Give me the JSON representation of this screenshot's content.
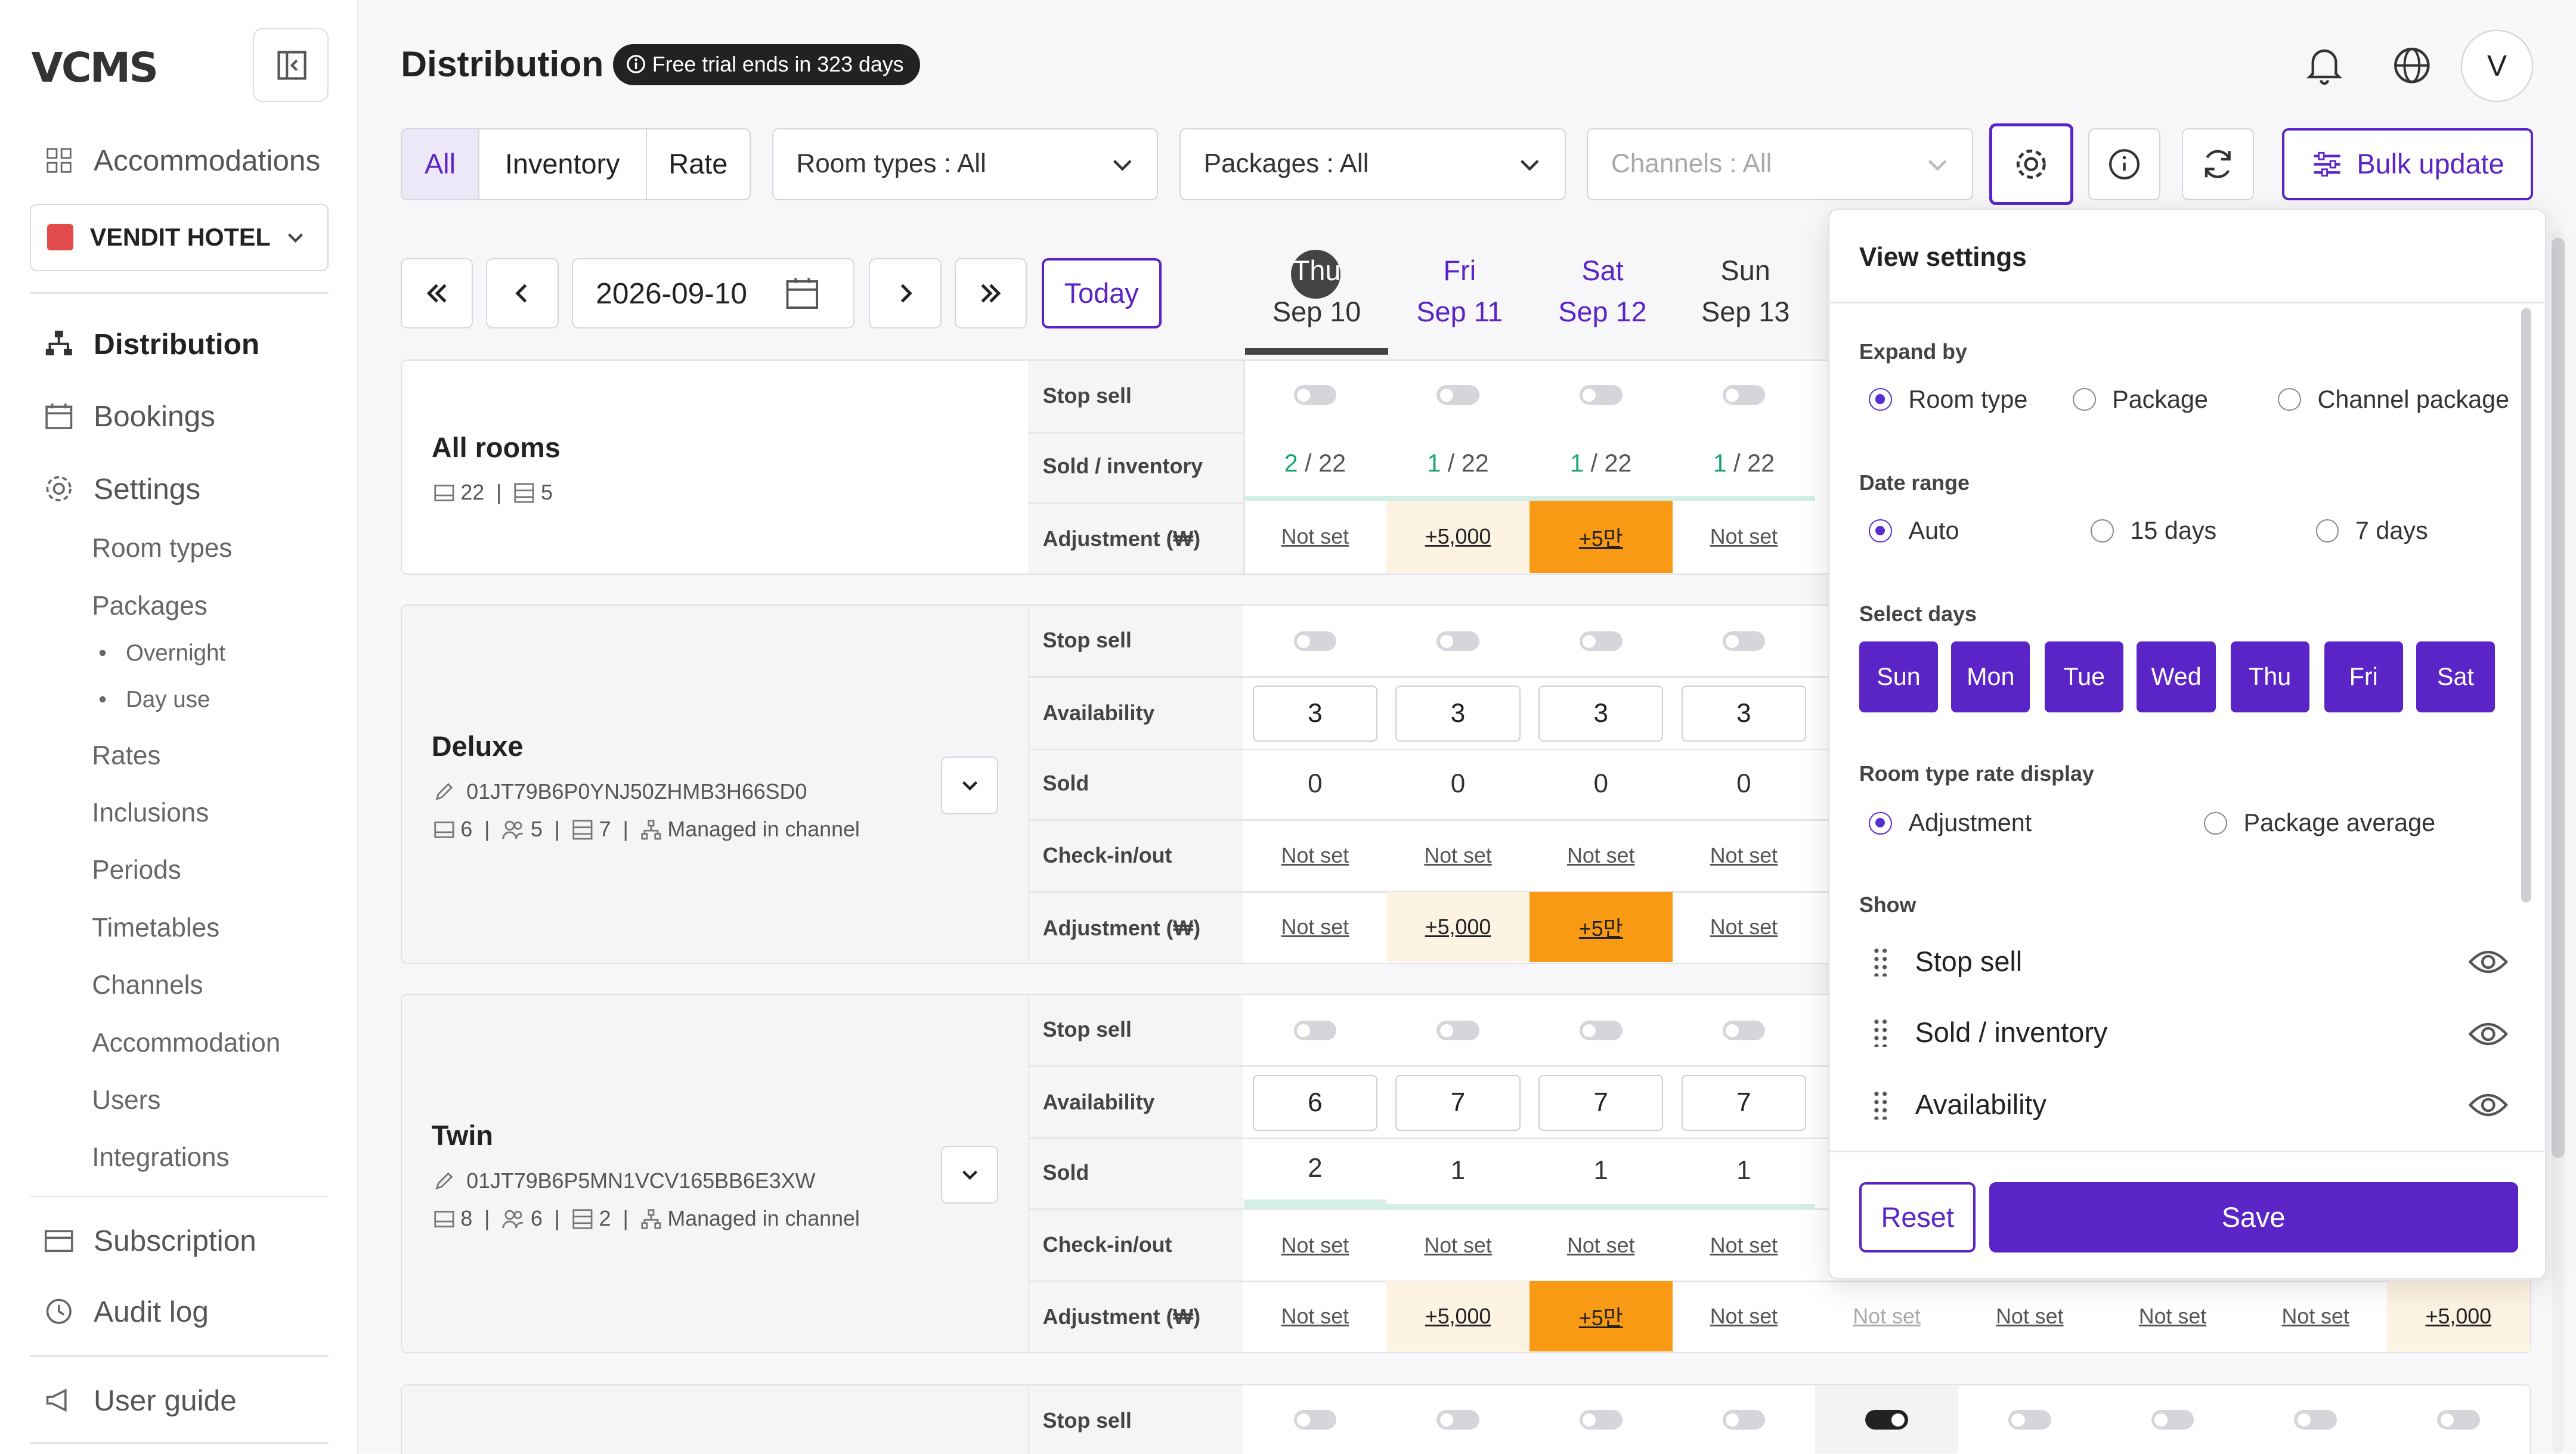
{
  "sidebar": {
    "logo": "VCMS",
    "accommodations": "Accommodations",
    "hotel": "VENDIT HOTEL",
    "distribution": "Distribution",
    "bookings": "Bookings",
    "settings": "Settings",
    "settings_items": [
      "Room types",
      "Packages",
      "Rates",
      "Inclusions",
      "Periods",
      "Timetables",
      "Channels",
      "Accommodation",
      "Users",
      "Integrations"
    ],
    "package_items": [
      "Overnight",
      "Day use"
    ],
    "subscription": "Subscription",
    "audit_log": "Audit log",
    "user_guide": "User guide"
  },
  "header": {
    "title": "Distribution",
    "trial_badge": "Free trial ends in 323 days",
    "avatar": "V"
  },
  "filters": {
    "tabs": [
      "All",
      "Inventory",
      "Rate"
    ],
    "room_types": "Room types : All",
    "packages": "Packages : All",
    "channels": "Channels : All",
    "bulk_update": "Bulk update"
  },
  "datenav": {
    "date": "2026-09-10",
    "today": "Today"
  },
  "days": [
    {
      "dow": "Thu",
      "date": "Sep 10"
    },
    {
      "dow": "Fri",
      "date": "Sep 11"
    },
    {
      "dow": "Sat",
      "date": "Sep 12"
    },
    {
      "dow": "Sun",
      "date": "Sep 13"
    }
  ],
  "row_labels": {
    "stop_sell": "Stop sell",
    "sold_inventory": "Sold / inventory",
    "adjustment": "Adjustment (₩)",
    "availability": "Availability",
    "sold": "Sold",
    "checkinout": "Check-in/out"
  },
  "values": {
    "not_set": "Not set",
    "plus5000": "+5,000",
    "plus5man": "+5만"
  },
  "all_rooms": {
    "name": "All rooms",
    "rooms": "22",
    "types": "5",
    "sold": [
      [
        "2",
        "22"
      ],
      [
        "1",
        "22"
      ],
      [
        "1",
        "22"
      ],
      [
        "1",
        "22"
      ]
    ]
  },
  "deluxe": {
    "name": "Deluxe",
    "id": "01JT79B6P0YNJ50ZHMB3H66SD0",
    "count": "6",
    "guests": "5",
    "inv": "7",
    "managed": "Managed in channel",
    "availability": [
      "3",
      "3",
      "3",
      "3"
    ],
    "sold": [
      "0",
      "0",
      "0",
      "0"
    ]
  },
  "twin": {
    "name": "Twin",
    "id": "01JT79B6P5MN1VCV165BB6E3XW",
    "count": "8",
    "guests": "6",
    "inv": "2",
    "managed": "Managed in channel",
    "availability": [
      "6",
      "7",
      "7",
      "7"
    ],
    "sold": [
      "2",
      "1",
      "1",
      "1"
    ]
  },
  "panel": {
    "title": "View settings",
    "expand_by": "Expand by",
    "expand_opts": [
      "Room type",
      "Package",
      "Channel package"
    ],
    "date_range": "Date range",
    "range_opts": [
      "Auto",
      "15 days",
      "7 days"
    ],
    "select_days": "Select days",
    "days": [
      "Sun",
      "Mon",
      "Tue",
      "Wed",
      "Thu",
      "Fri",
      "Sat"
    ],
    "rate_display": "Room type rate display",
    "rate_opts": [
      "Adjustment",
      "Package average"
    ],
    "show": "Show",
    "show_items": [
      "Stop sell",
      "Sold / inventory",
      "Availability"
    ],
    "reset": "Reset",
    "save": "Save"
  },
  "colors": {
    "accent": "#5a24c7",
    "orange": "#f99a14",
    "highlight": "#fdf3e2",
    "green": "#1aa37a"
  }
}
